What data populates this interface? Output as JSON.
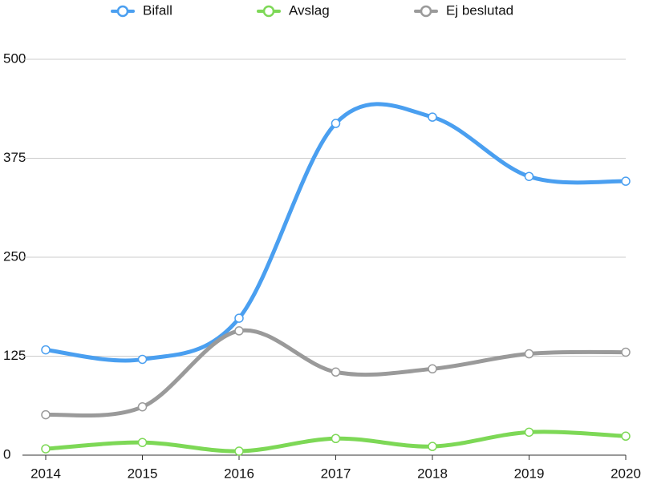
{
  "chart_data": {
    "type": "line",
    "x": [
      2014,
      2015,
      2016,
      2017,
      2018,
      2019,
      2020
    ],
    "xlim": [
      2014,
      2020
    ],
    "xticks": [
      2014,
      2015,
      2016,
      2017,
      2018,
      2019,
      2020
    ],
    "ylim": [
      0,
      500
    ],
    "yticks": [
      0,
      125,
      250,
      375,
      500
    ],
    "grid": true,
    "legend": "top",
    "smooth": true,
    "series": [
      {
        "name": "Bifall",
        "color": "#4a9ff0",
        "values": [
          133,
          121,
          173,
          419,
          427,
          352,
          346
        ]
      },
      {
        "name": "Avslag",
        "color": "#7dd856",
        "values": [
          8,
          16,
          5,
          21,
          11,
          29,
          24
        ]
      },
      {
        "name": "Ej beslutad",
        "color": "#9a9a9a",
        "values": [
          51,
          61,
          157,
          105,
          109,
          128,
          130
        ]
      }
    ]
  }
}
